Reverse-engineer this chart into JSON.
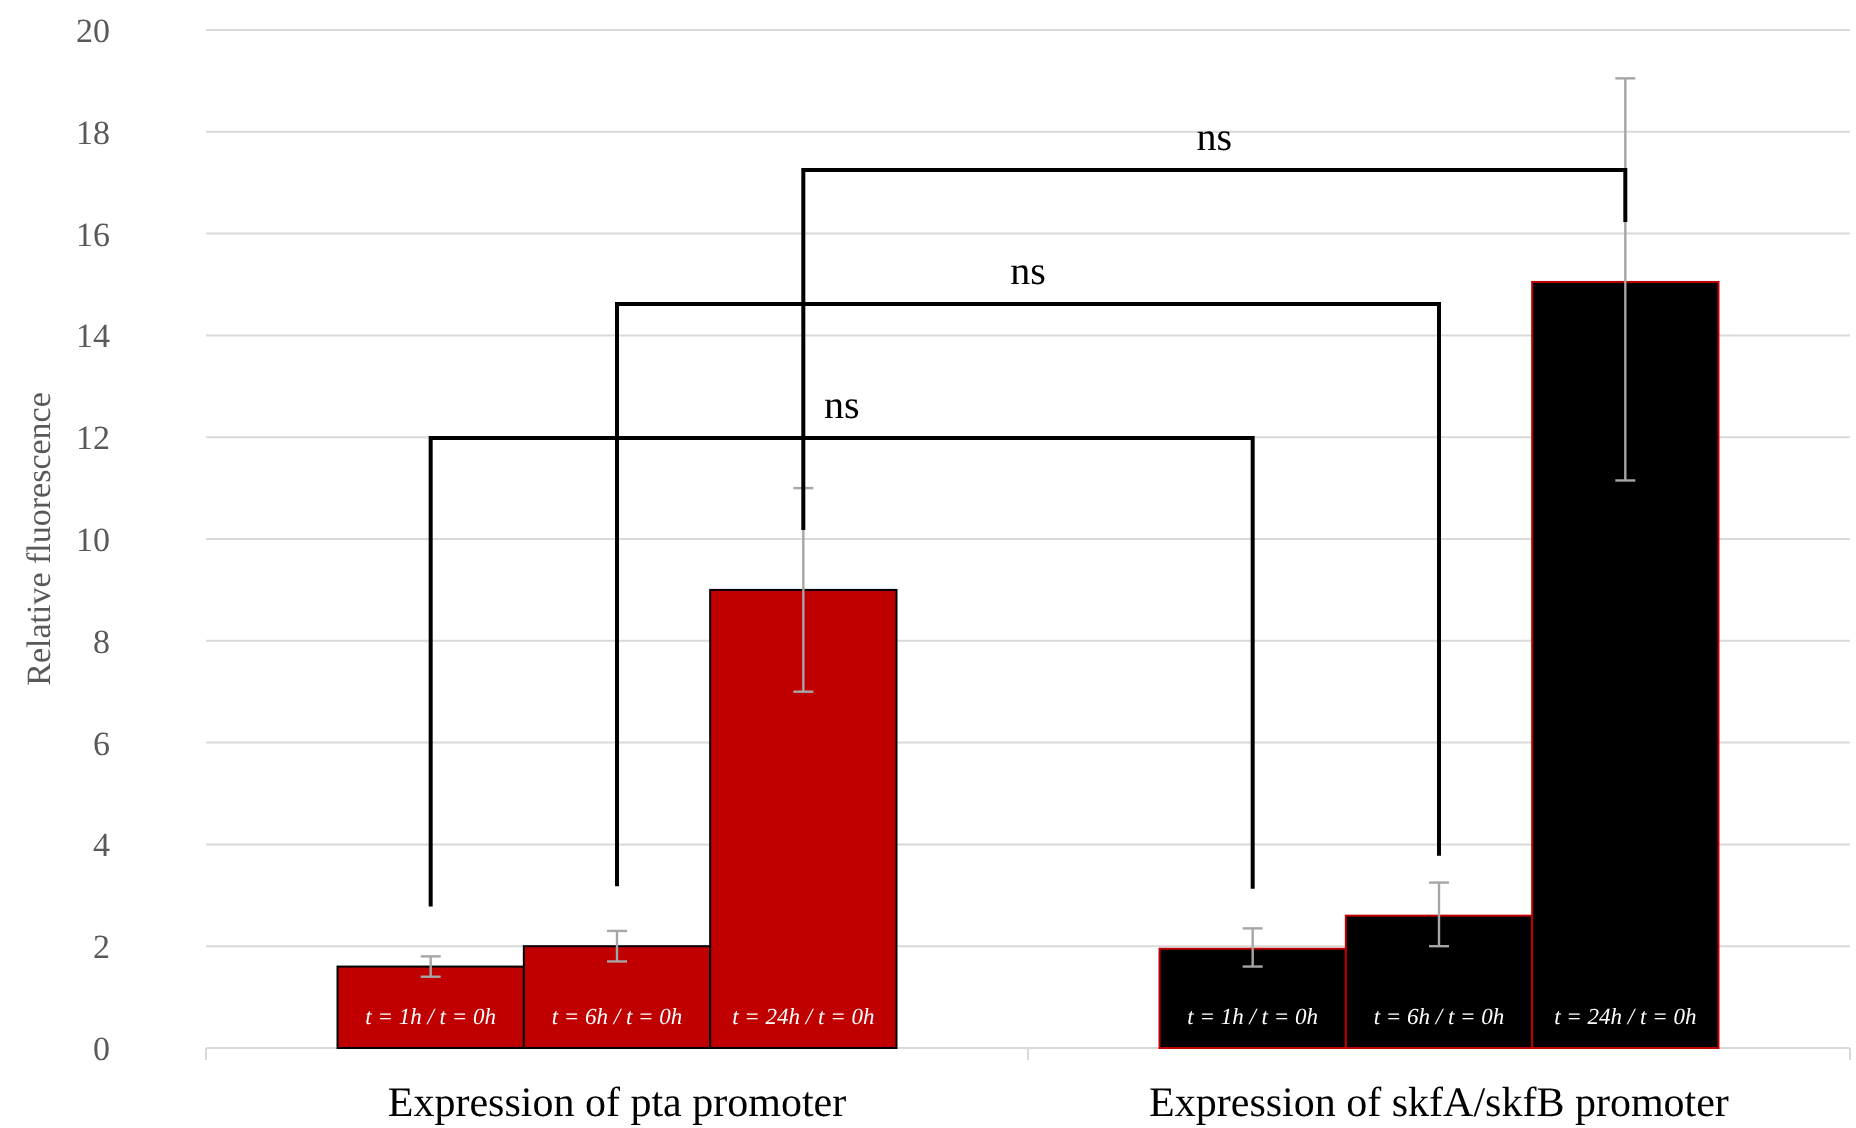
{
  "chart_data": {
    "type": "bar",
    "ylabel": "Relative fluorescence",
    "categories": [
      "Expression of pta promoter",
      "Expression of skfA/skfB promoter"
    ],
    "series": [
      {
        "name": "t = 1h / t = 0h",
        "colors": [
          "#c00000",
          "#000000"
        ],
        "values": [
          1.6,
          1.95
        ],
        "errors": [
          [
            1.4,
            1.8
          ],
          [
            1.6,
            2.35
          ]
        ]
      },
      {
        "name": "t = 6h / t = 0h",
        "colors": [
          "#c00000",
          "#000000"
        ],
        "values": [
          2.0,
          2.6
        ],
        "errors": [
          [
            1.7,
            2.3
          ],
          [
            2.0,
            3.25
          ]
        ]
      },
      {
        "name": "t = 24h / t = 0h",
        "colors": [
          "#c00000",
          "#000000"
        ],
        "values": [
          9.0,
          15.05
        ],
        "errors": [
          [
            7.0,
            11.0
          ],
          [
            11.15,
            19.05
          ]
        ]
      }
    ],
    "ylim": [
      0,
      20
    ],
    "yticks": [
      0,
      2,
      4,
      6,
      8,
      10,
      12,
      14,
      16,
      18,
      20
    ],
    "grid": "y",
    "annotations": [
      "ns",
      "ns",
      "ns"
    ]
  }
}
